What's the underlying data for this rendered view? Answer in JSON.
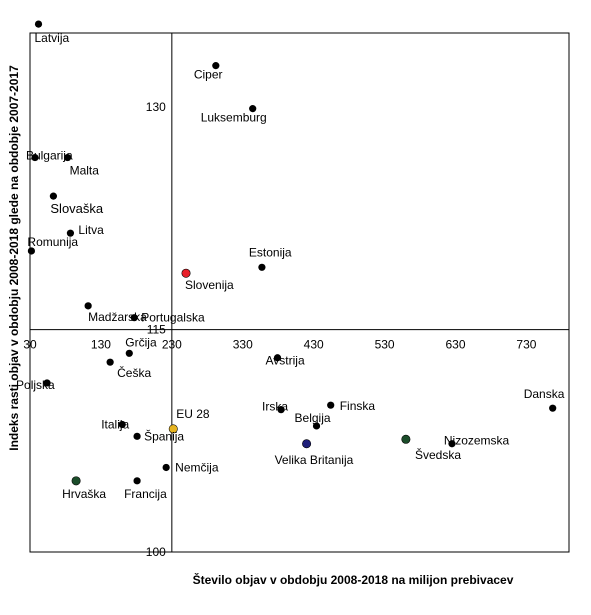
{
  "chart_data": {
    "type": "scatter",
    "xlabel": "Število objav  v obdobju 2008-2018 na milijon prebivacev",
    "ylabel": "Indeks rasti objav  v obdobju 2008-2018 glede na obdobje 2007-2017",
    "xlim": [
      30,
      790
    ],
    "ylim": [
      100,
      135
    ],
    "x_ticks": [
      30,
      130,
      230,
      330,
      430,
      530,
      630,
      730
    ],
    "y_ticks": [
      100,
      115,
      130
    ],
    "crosshair": {
      "x": 230,
      "y": 115
    },
    "grid": false,
    "colors": {
      "default": "#000000",
      "highlight_slovenia": "#e8202a",
      "highlight_eu": "#e6b421",
      "dark_blue": "#1f1f7a",
      "dark_green": "#1b4d2a"
    },
    "points": [
      {
        "name": "Latvija",
        "x": 42,
        "y": 135.6,
        "color": "#000000"
      },
      {
        "name": "Ciper",
        "x": 292,
        "y": 132.8,
        "color": "#000000"
      },
      {
        "name": "Luksemburg",
        "x": 344,
        "y": 129.9,
        "color": "#000000"
      },
      {
        "name": "Bulgarija",
        "x": 37,
        "y": 126.6,
        "color": "#000000"
      },
      {
        "name": "Malta",
        "x": 83,
        "y": 126.6,
        "color": "#000000"
      },
      {
        "name": "Slovaška",
        "x": 63,
        "y": 124.0,
        "color": "#000000"
      },
      {
        "name": "Litva",
        "x": 87,
        "y": 121.5,
        "color": "#000000"
      },
      {
        "name": "Romunija",
        "x": 32,
        "y": 120.3,
        "color": "#000000"
      },
      {
        "name": "Estonija",
        "x": 357,
        "y": 119.2,
        "color": "#000000"
      },
      {
        "name": "Slovenija",
        "x": 250,
        "y": 118.8,
        "color": "#e8202a"
      },
      {
        "name": "Madžarska",
        "x": 112,
        "y": 116.6,
        "color": "#000000"
      },
      {
        "name": "Portugalska",
        "x": 177,
        "y": 115.8,
        "color": "#000000"
      },
      {
        "name": "Grčija",
        "x": 170,
        "y": 113.4,
        "color": "#000000"
      },
      {
        "name": "Češka",
        "x": 143,
        "y": 112.8,
        "color": "#000000"
      },
      {
        "name": "Avstrija",
        "x": 379,
        "y": 113.1,
        "color": "#000000"
      },
      {
        "name": "Poljska",
        "x": 54,
        "y": 111.4,
        "color": "#000000"
      },
      {
        "name": "Danska",
        "x": 767,
        "y": 109.7,
        "color": "#000000"
      },
      {
        "name": "Finska",
        "x": 454,
        "y": 109.9,
        "color": "#000000"
      },
      {
        "name": "Irska",
        "x": 384,
        "y": 109.6,
        "color": "#000000"
      },
      {
        "name": "Belgija",
        "x": 434,
        "y": 108.5,
        "color": "#000000"
      },
      {
        "name": "EU 28",
        "x": 232,
        "y": 108.3,
        "color": "#e6b421"
      },
      {
        "name": "Italija",
        "x": 160,
        "y": 108.6,
        "color": "#000000"
      },
      {
        "name": "Španija",
        "x": 181,
        "y": 107.8,
        "color": "#000000"
      },
      {
        "name": "Nizozemska",
        "x": 560,
        "y": 107.6,
        "color": "#1b4d2a"
      },
      {
        "name": "Švedska",
        "x": 625,
        "y": 107.3,
        "color": "#000000"
      },
      {
        "name": "Velika Britanija",
        "x": 420,
        "y": 107.3,
        "color": "#1f1f7a"
      },
      {
        "name": "Nemčija",
        "x": 222,
        "y": 105.7,
        "color": "#000000"
      },
      {
        "name": "Hrvaška",
        "x": 95,
        "y": 104.8,
        "color": "#1b4d2a"
      },
      {
        "name": "Francija",
        "x": 181,
        "y": 104.8,
        "color": "#000000"
      }
    ]
  }
}
